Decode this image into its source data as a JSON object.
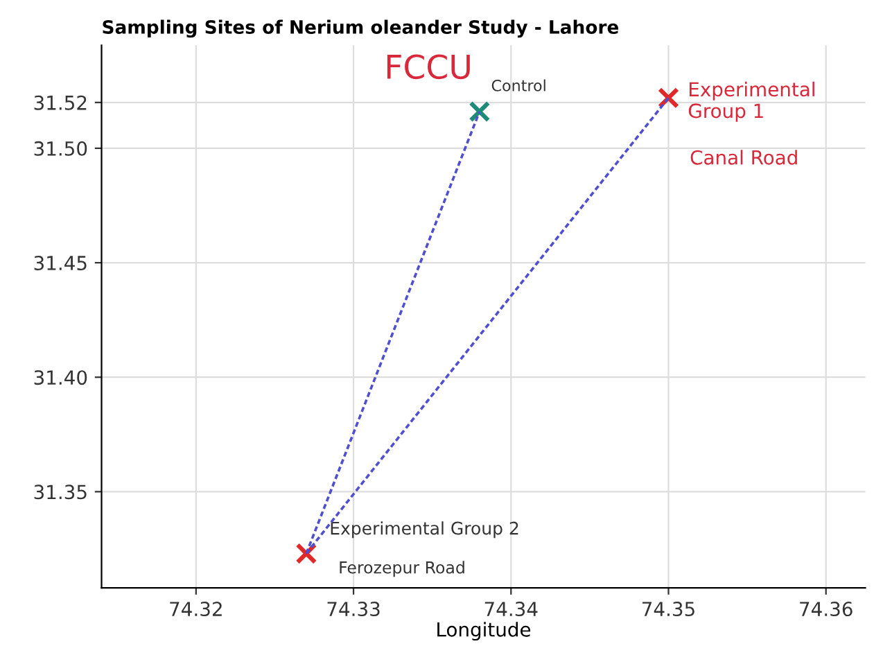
{
  "chart_data": {
    "type": "scatter",
    "title": "Sampling Sites of Nerium oleander Study - Lahore",
    "xlabel": "Longitude",
    "series": [
      {
        "type": "line",
        "color": "#4f4fd0",
        "line_style": "dashed",
        "marker": "none",
        "x": [
          74.327,
          74.338
        ],
        "values": [
          31.323,
          31.516
        ]
      },
      {
        "type": "line",
        "color": "#4f4fd0",
        "line_style": "dashed",
        "marker": "none",
        "x": [
          74.327,
          74.35
        ],
        "values": [
          31.323,
          31.522
        ]
      },
      {
        "marker": "cross",
        "x": [
          74.327,
          74.338,
          74.35
        ],
        "values": [
          31.323,
          31.516,
          31.522
        ],
        "colors": [
          "#e02a2a",
          "#1f8a78",
          "#e02a2a"
        ]
      }
    ],
    "annotations": [
      "FCCU",
      {
        "text": "Experimental\nGroup 1",
        "x": 74.35,
        "y": 31.522
      },
      "Canal Road",
      {
        "text": "Control",
        "x": 74.338,
        "y": 31.516
      },
      {
        "text": "Experimental Group 2",
        "x": 74.327,
        "y": 31.323
      },
      "Ferozepur Road"
    ],
    "xlim": [
      74.314,
      74.3625
    ],
    "ylim": [
      31.308,
      31.545
    ],
    "xticks": [
      74.32,
      74.33,
      74.34,
      74.35,
      74.36
    ],
    "yticks": [
      31.35,
      {
        "value": 31.4,
        "label": "31.40"
      },
      31.45,
      {
        "value": 31.5,
        "label": "31.50"
      },
      31.52
    ],
    "grid": true
  }
}
